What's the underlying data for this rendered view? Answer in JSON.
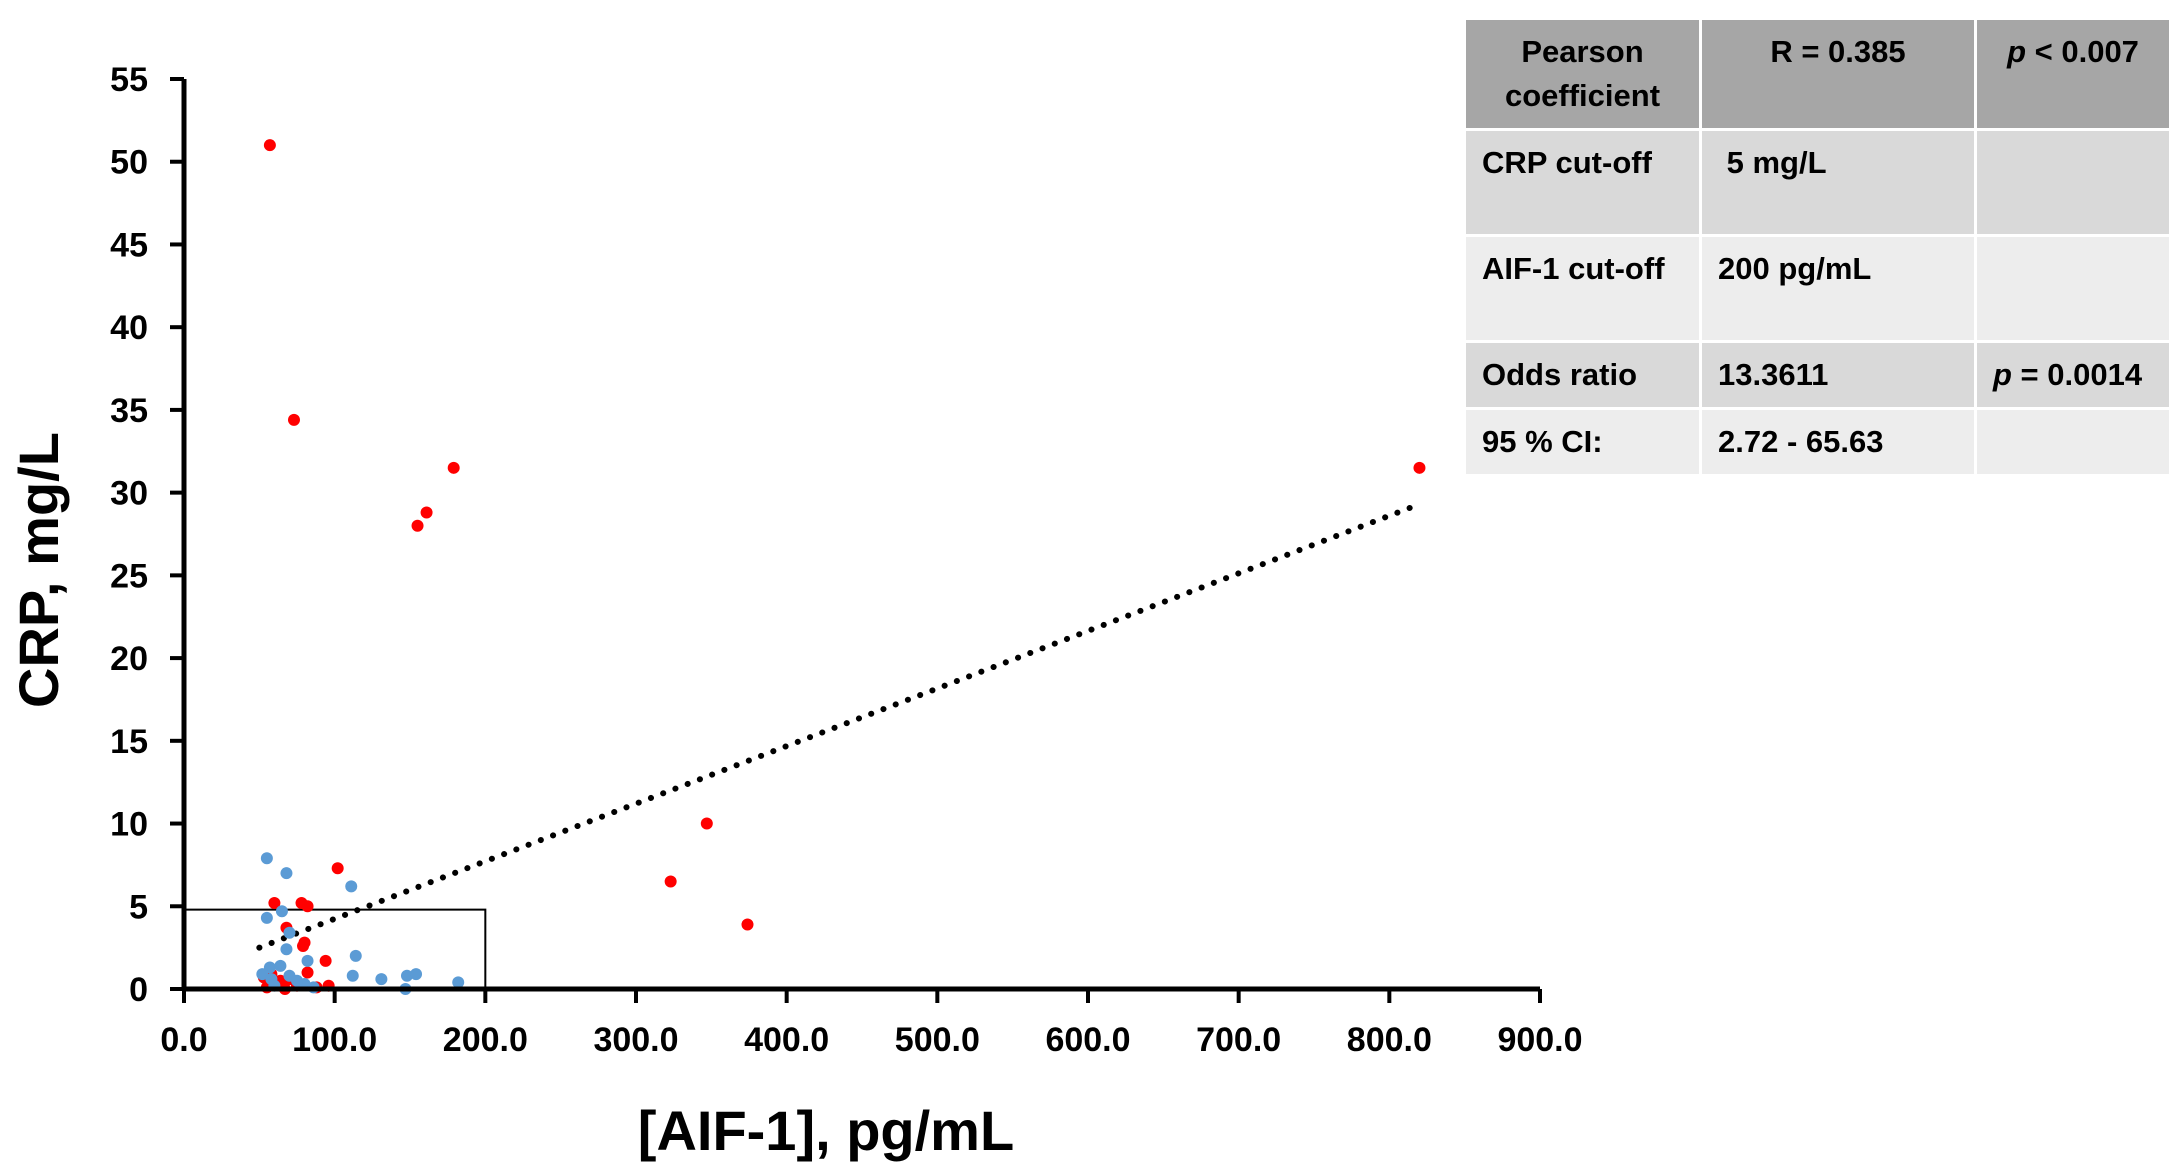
{
  "chart_data": {
    "type": "scatter",
    "title": "",
    "xlabel": "[AIF-1], pg/mL",
    "ylabel": "CRP, mg/L",
    "xlim": [
      0,
      900
    ],
    "ylim": [
      0,
      55
    ],
    "x_ticks": [
      0,
      100,
      200,
      300,
      400,
      500,
      600,
      700,
      800,
      900
    ],
    "x_tick_labels": [
      "0.0",
      "100.0",
      "200.0",
      "300.0",
      "400.0",
      "500.0",
      "600.0",
      "700.0",
      "800.0",
      "900.0"
    ],
    "y_ticks": [
      0,
      5,
      10,
      15,
      20,
      25,
      30,
      35,
      40,
      45,
      50,
      55
    ],
    "y_tick_labels": [
      "0",
      "5",
      "10",
      "15",
      "20",
      "25",
      "30",
      "35",
      "40",
      "45",
      "50",
      "55"
    ],
    "grid": false,
    "legend": "none",
    "series": [
      {
        "color": "#ff0000",
        "points": [
          [
            57,
            51.0
          ],
          [
            73,
            34.4
          ],
          [
            179,
            31.5
          ],
          [
            161,
            28.8
          ],
          [
            155,
            28.0
          ],
          [
            820,
            31.5
          ],
          [
            347,
            10.0
          ],
          [
            323,
            6.5
          ],
          [
            374,
            3.9
          ],
          [
            102,
            7.3
          ],
          [
            60,
            5.2
          ],
          [
            78,
            5.2
          ],
          [
            82,
            5.0
          ],
          [
            68,
            3.7
          ],
          [
            80,
            2.8
          ],
          [
            79,
            2.6
          ],
          [
            94,
            1.7
          ],
          [
            82,
            1.0
          ],
          [
            53,
            0.7
          ],
          [
            70,
            0.6
          ],
          [
            56,
            0.4
          ],
          [
            62,
            0.3
          ],
          [
            75,
            0.2
          ],
          [
            88,
            0.1
          ],
          [
            96,
            0.2
          ],
          [
            55,
            0.1
          ],
          [
            67,
            0.0
          ],
          [
            58,
            0.9
          ],
          [
            64,
            0.5
          ]
        ]
      },
      {
        "color": "#5b9bd5",
        "points": [
          [
            55,
            7.9
          ],
          [
            68,
            7.0
          ],
          [
            111,
            6.2
          ],
          [
            65,
            4.7
          ],
          [
            55,
            4.3
          ],
          [
            70,
            3.4
          ],
          [
            68,
            2.4
          ],
          [
            114,
            2.0
          ],
          [
            82,
            1.7
          ],
          [
            57,
            1.3
          ],
          [
            64,
            1.4
          ],
          [
            52,
            0.9
          ],
          [
            70,
            0.8
          ],
          [
            112,
            0.8
          ],
          [
            131,
            0.6
          ],
          [
            148,
            0.8
          ],
          [
            154,
            0.9
          ],
          [
            182,
            0.4
          ],
          [
            147,
            0.0
          ],
          [
            80,
            0.3
          ],
          [
            60,
            0.2
          ],
          [
            75,
            0.5
          ],
          [
            86,
            0.1
          ],
          [
            58,
            0.6
          ]
        ]
      }
    ],
    "trendline": {
      "style": "dotted",
      "color": "#000000",
      "points": [
        [
          50,
          2.5
        ],
        [
          820,
          29.3
        ]
      ]
    },
    "cutoff_box": {
      "x_max": 200,
      "y_max": 4.8,
      "color": "#000000"
    }
  },
  "stats_table": {
    "rows": [
      {
        "c0": "Pearson coefficient",
        "c1": "R = 0.385",
        "c2_prefix": "p",
        "c2_rest": " < 0.007"
      },
      {
        "c0": "CRP cut-off",
        "c1": " 5 mg/L",
        "c2_prefix": "",
        "c2_rest": ""
      },
      {
        "c0": "AIF-1 cut-off",
        "c1": "200 pg/mL",
        "c2_prefix": "",
        "c2_rest": ""
      },
      {
        "c0": "Odds ratio",
        "c1": "13.3611",
        "c2_prefix": "p",
        "c2_rest": " = 0.0014"
      },
      {
        "c0": "95 % CI:",
        "c1": "2.72 - 65.63",
        "c2_prefix": "",
        "c2_rest": ""
      }
    ]
  }
}
